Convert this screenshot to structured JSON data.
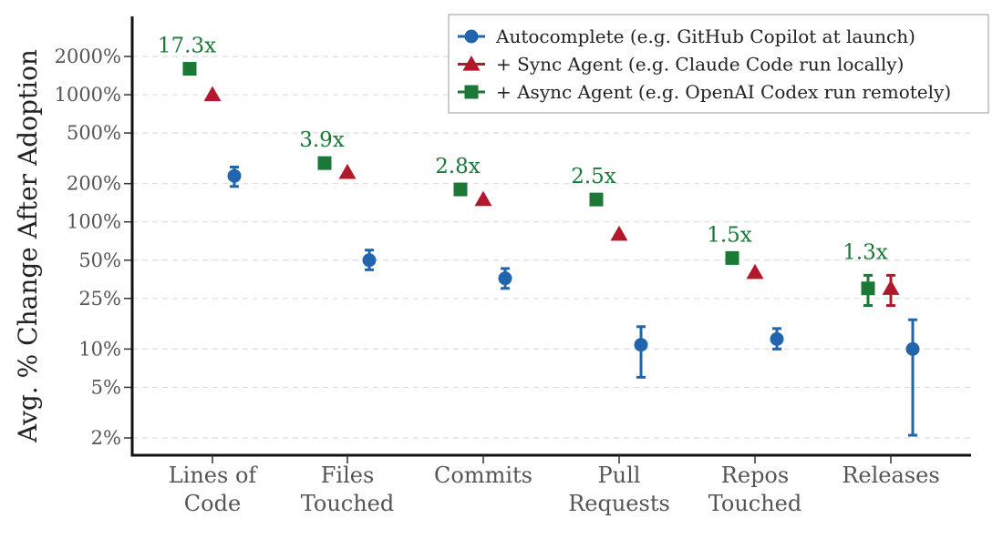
{
  "chart_data": {
    "type": "scatter",
    "ylabel": "Avg. % Change After Adoption",
    "y_scale": "log",
    "ylim_pct": [
      1.5,
      3000
    ],
    "y_ticks": [
      {
        "value": 2,
        "label": "2%"
      },
      {
        "value": 5,
        "label": "5%"
      },
      {
        "value": 10,
        "label": "10%"
      },
      {
        "value": 25,
        "label": "25%"
      },
      {
        "value": 50,
        "label": "50%"
      },
      {
        "value": 100,
        "label": "100%"
      },
      {
        "value": 200,
        "label": "200%"
      },
      {
        "value": 500,
        "label": "500%"
      },
      {
        "value": 1000,
        "label": "1000%"
      },
      {
        "value": 2000,
        "label": "2000%"
      }
    ],
    "grid": "horizontal dashed",
    "legend_position": "top-right",
    "categories": [
      [
        "Lines of",
        "Code"
      ],
      [
        "Files",
        "Touched"
      ],
      [
        "Commits"
      ],
      [
        "Pull",
        "Requests"
      ],
      [
        "Repos",
        "Touched"
      ],
      [
        "Releases"
      ]
    ],
    "series": [
      {
        "name": "Autocomplete (e.g. GitHub Copilot at launch)",
        "color": "#2166ac",
        "marker": "circle",
        "values": [
          230,
          50,
          36,
          10.8,
          12,
          10
        ],
        "err_low": [
          190,
          42,
          30,
          6,
          10,
          2.1
        ],
        "err_high": [
          270,
          60,
          43,
          15,
          14.5,
          17
        ]
      },
      {
        "name": "+ Sync Agent (e.g. Claude Code run locally)",
        "color": "#b2182b",
        "marker": "triangle",
        "values": [
          1000,
          245,
          150,
          80,
          40,
          30
        ],
        "err_low": [
          null,
          null,
          null,
          null,
          null,
          22
        ],
        "err_high": [
          null,
          null,
          null,
          null,
          null,
          38
        ]
      },
      {
        "name": "+ Async Agent (e.g. OpenAI Codex run remotely)",
        "color": "#1b7837",
        "marker": "square",
        "values": [
          1600,
          290,
          180,
          150,
          52,
          30
        ],
        "err_low": [
          null,
          null,
          null,
          null,
          null,
          22
        ],
        "err_high": [
          null,
          null,
          null,
          null,
          null,
          38
        ]
      }
    ],
    "annotations": [
      {
        "category_index": 0,
        "text": "17.3x",
        "near_value": 1600
      },
      {
        "category_index": 1,
        "text": "3.9x",
        "near_value": 290
      },
      {
        "category_index": 2,
        "text": "2.8x",
        "near_value": 180
      },
      {
        "category_index": 3,
        "text": "2.5x",
        "near_value": 150
      },
      {
        "category_index": 4,
        "text": "1.5x",
        "near_value": 52
      },
      {
        "category_index": 5,
        "text": "1.3x",
        "near_value": 38
      }
    ],
    "annotation_color": "#1b7837"
  }
}
